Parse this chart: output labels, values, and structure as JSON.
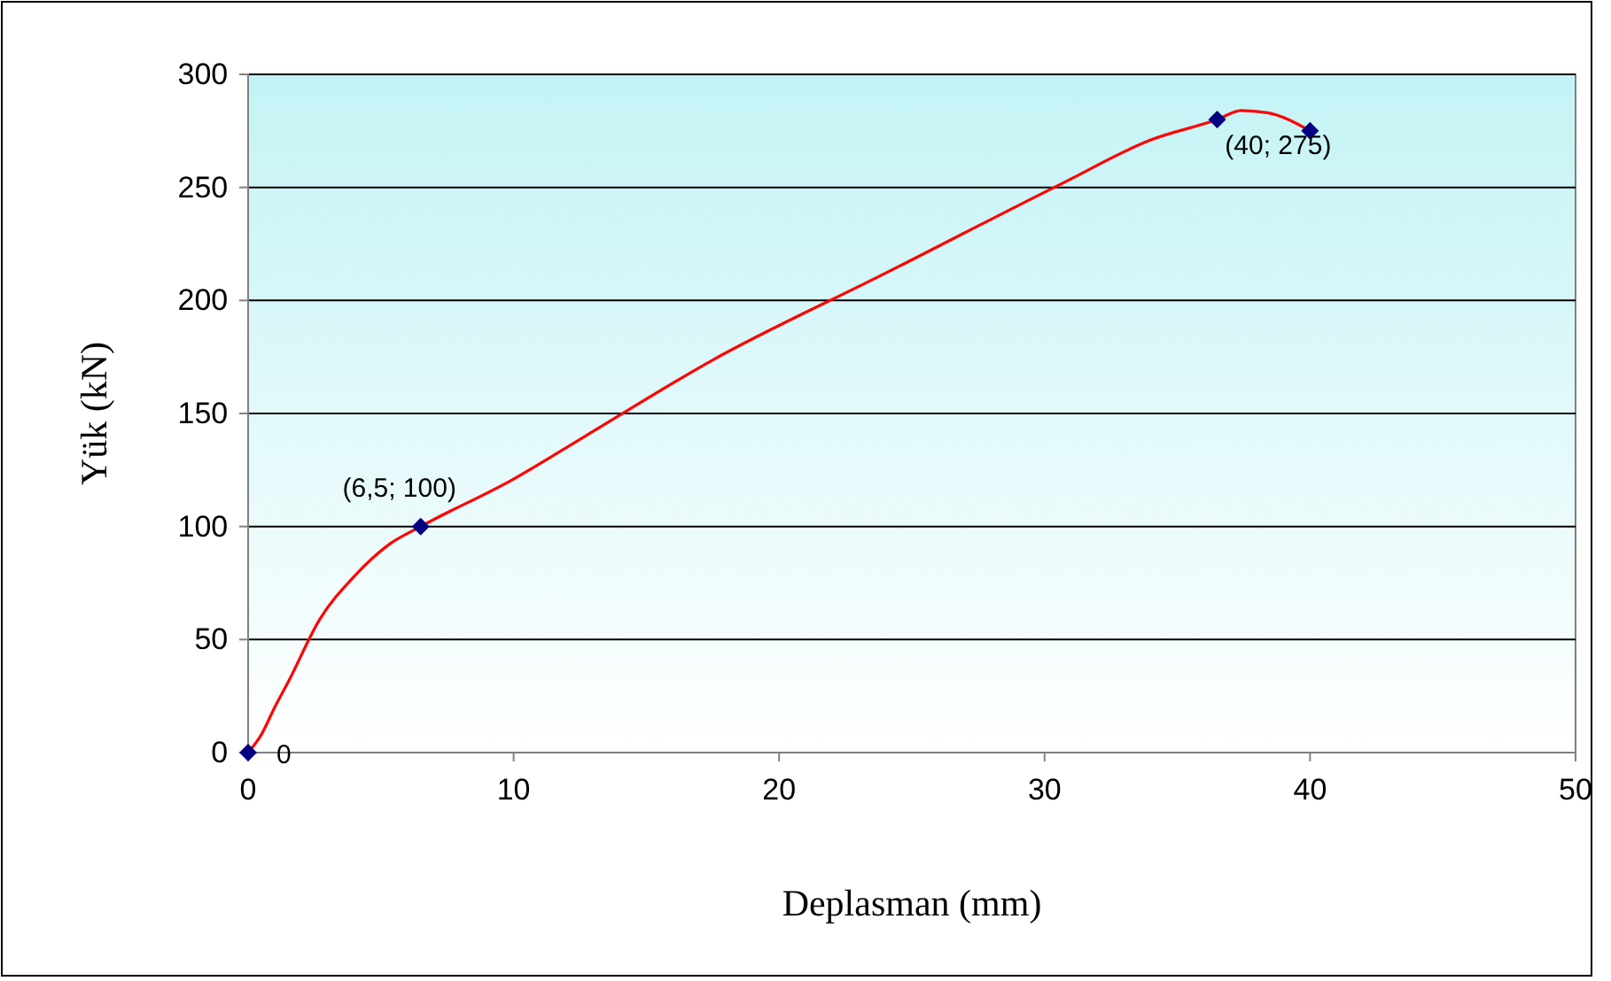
{
  "chart_data": {
    "type": "line",
    "xlabel": "Deplasman (mm)",
    "ylabel": "Yük (kN)",
    "xlim": [
      0,
      50
    ],
    "xticks": [
      0,
      10,
      20,
      30,
      40,
      50
    ],
    "ylim": [
      0,
      300
    ],
    "yticks": [
      0,
      50,
      100,
      150,
      200,
      250,
      300
    ],
    "grid": "y",
    "series": [
      {
        "color": "#ff0000",
        "marker": "none",
        "x": [
          0,
          0.5,
          1,
          1.5,
          2.7,
          4,
          5.3,
          6.5,
          10,
          12.7,
          17.4,
          24,
          30.7,
          34,
          36.5,
          37.4,
          38.4,
          40
        ],
        "values": [
          0,
          8,
          20,
          31,
          59,
          78,
          92,
          100,
          121,
          140,
          173,
          212,
          252,
          271,
          280,
          284,
          283,
          275
        ]
      },
      {
        "type": "scatter",
        "color": "#000080",
        "marker": "diamond",
        "x": [
          0,
          6.5,
          36.5,
          40
        ],
        "values": [
          0,
          100,
          280,
          275
        ]
      }
    ],
    "annotations": [
      {
        "text": "0",
        "x": 0,
        "y": 0
      },
      {
        "text": "(6,5; 100)",
        "x": 6.5,
        "y": 100
      },
      {
        "text": "(40; 275)",
        "x": 40,
        "y": 275
      }
    ]
  }
}
